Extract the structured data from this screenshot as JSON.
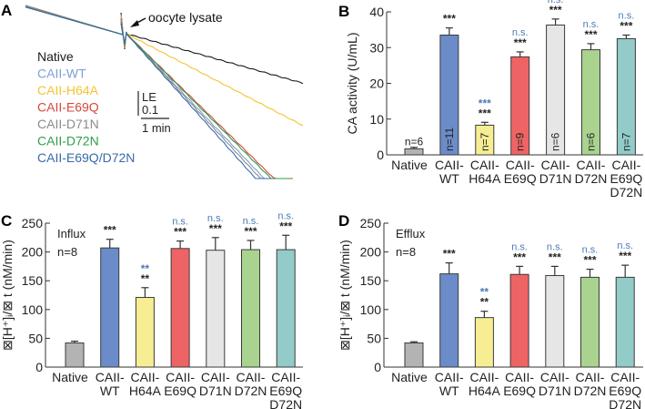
{
  "panels": {
    "A": {
      "letter": "A",
      "annotation": "oocyte lysate",
      "scale_y": "LE",
      "scale_y_value": "0.1",
      "scale_x": "1 min",
      "legend": [
        {
          "label": "Native",
          "color": "#1a1a1a",
          "slope": 0.28
        },
        {
          "label": "CAII-WT",
          "color": "#7f9fd3",
          "slope": 1.05
        },
        {
          "label": "CAII-H64A",
          "color": "#f4c430",
          "slope": 0.52
        },
        {
          "label": "CAII-E69Q",
          "color": "#d9463c",
          "slope": 0.98
        },
        {
          "label": "CAII-D71N",
          "color": "#8c8c8c",
          "slope": 1.08
        },
        {
          "label": "CAII-D72N",
          "color": "#2f9e4b",
          "slope": 1.0
        },
        {
          "label": "CAII-E69Q/D72N",
          "color": "#3a6aa8",
          "slope": 1.12
        }
      ]
    }
  },
  "chart_data": [
    {
      "panel": "B",
      "letter": "B",
      "type": "bar",
      "title": "",
      "xlabel": "",
      "ylabel": "CA activity (U/mL)",
      "ylim": [
        0,
        40
      ],
      "yticks": [
        "0",
        "10",
        "20",
        "30",
        "40"
      ],
      "ytick_values": [
        0,
        10,
        20,
        30,
        40
      ],
      "categories": [
        [
          "Native"
        ],
        [
          "CAII-",
          "WT"
        ],
        [
          "CAII-",
          "H64A"
        ],
        [
          "CAII-",
          "E69Q"
        ],
        [
          "CAII-",
          "D71N"
        ],
        [
          "CAII-",
          "D72N"
        ],
        [
          "CAII-",
          "E69Q",
          "D72N"
        ]
      ],
      "values": [
        1.7,
        33.5,
        8.3,
        27.4,
        36.3,
        29.4,
        32.5
      ],
      "errors": [
        0.4,
        2.0,
        0.8,
        1.4,
        1.7,
        1.7,
        1.0
      ],
      "colors": [
        "#b3b3b3",
        "#6b8cc9",
        "#f7ee94",
        "#ee6464",
        "#e6e6e6",
        "#a9d38e",
        "#92cbc8"
      ],
      "n_labels": [
        "n=6",
        "n=11",
        "n=7",
        "n=9",
        "n=6",
        "n=6",
        "n=7"
      ],
      "sig_black": [
        "",
        "***",
        "***",
        "***",
        "***",
        "***",
        "***"
      ],
      "sig_blue": [
        "",
        "",
        "***",
        "n.s.",
        "n.s.",
        "n.s.",
        "n.s."
      ],
      "notes": []
    },
    {
      "panel": "C",
      "letter": "C",
      "type": "bar",
      "title": "",
      "xlabel": "",
      "ylabel": "⊠[H⁺]ᵢ/⊠ t (nM/min)",
      "ylim": [
        0,
        250
      ],
      "yticks": [
        "0",
        "50",
        "100",
        "150",
        "200",
        "250"
      ],
      "ytick_values": [
        0,
        50,
        100,
        150,
        200,
        250
      ],
      "categories": [
        [
          "Native"
        ],
        [
          "CAII-",
          "WT"
        ],
        [
          "CAII-",
          "H64A"
        ],
        [
          "CAII-",
          "E69Q"
        ],
        [
          "CAII-",
          "D71N"
        ],
        [
          "CAII-",
          "D72N"
        ],
        [
          "CAII-",
          "E69Q",
          "D72N"
        ]
      ],
      "values": [
        42,
        207,
        121,
        206,
        203,
        204,
        204
      ],
      "errors": [
        3,
        15,
        17,
        13,
        22,
        16,
        25
      ],
      "colors": [
        "#b3b3b3",
        "#6b8cc9",
        "#f7ee94",
        "#ee6464",
        "#e6e6e6",
        "#a9d38e",
        "#92cbc8"
      ],
      "n_labels": [],
      "sig_black": [
        "",
        "***",
        "**",
        "***",
        "***",
        "***",
        "***"
      ],
      "sig_blue": [
        "",
        "",
        "**",
        "n.s.",
        "n.s.",
        "n.s.",
        "n.s."
      ],
      "notes": [
        "Influx",
        "n=8"
      ]
    },
    {
      "panel": "D",
      "letter": "D",
      "type": "bar",
      "title": "",
      "xlabel": "",
      "ylabel": "⊠[H⁺]ᵢ/⊠ t (nM/min)",
      "ylim": [
        0,
        250
      ],
      "yticks": [
        "0",
        "50",
        "100",
        "150",
        "200",
        "250"
      ],
      "ytick_values": [
        0,
        50,
        100,
        150,
        200,
        250
      ],
      "categories": [
        [
          "Native"
        ],
        [
          "CAII-",
          "WT"
        ],
        [
          "CAII-",
          "H64A"
        ],
        [
          "CAII-",
          "E69Q"
        ],
        [
          "CAII-",
          "D71N"
        ],
        [
          "CAII-",
          "D72N"
        ],
        [
          "CAII-",
          "E69Q",
          "D72N"
        ]
      ],
      "values": [
        42,
        162,
        86,
        161,
        159,
        156,
        156
      ],
      "errors": [
        2,
        19,
        11,
        14,
        16,
        14,
        21
      ],
      "colors": [
        "#b3b3b3",
        "#6b8cc9",
        "#f7ee94",
        "#ee6464",
        "#e6e6e6",
        "#a9d38e",
        "#92cbc8"
      ],
      "n_labels": [],
      "sig_black": [
        "",
        "***",
        "**",
        "***",
        "***",
        "***",
        "***"
      ],
      "sig_blue": [
        "",
        "",
        "**",
        "n.s.",
        "n.s.",
        "n.s.",
        "n.s."
      ],
      "notes": [
        "Efflux",
        "n=8"
      ]
    }
  ],
  "style": {
    "sig_blue_color": "#4a7ab5",
    "axis_color": "#333333",
    "bar_edge_color": "#3a3a3a"
  }
}
